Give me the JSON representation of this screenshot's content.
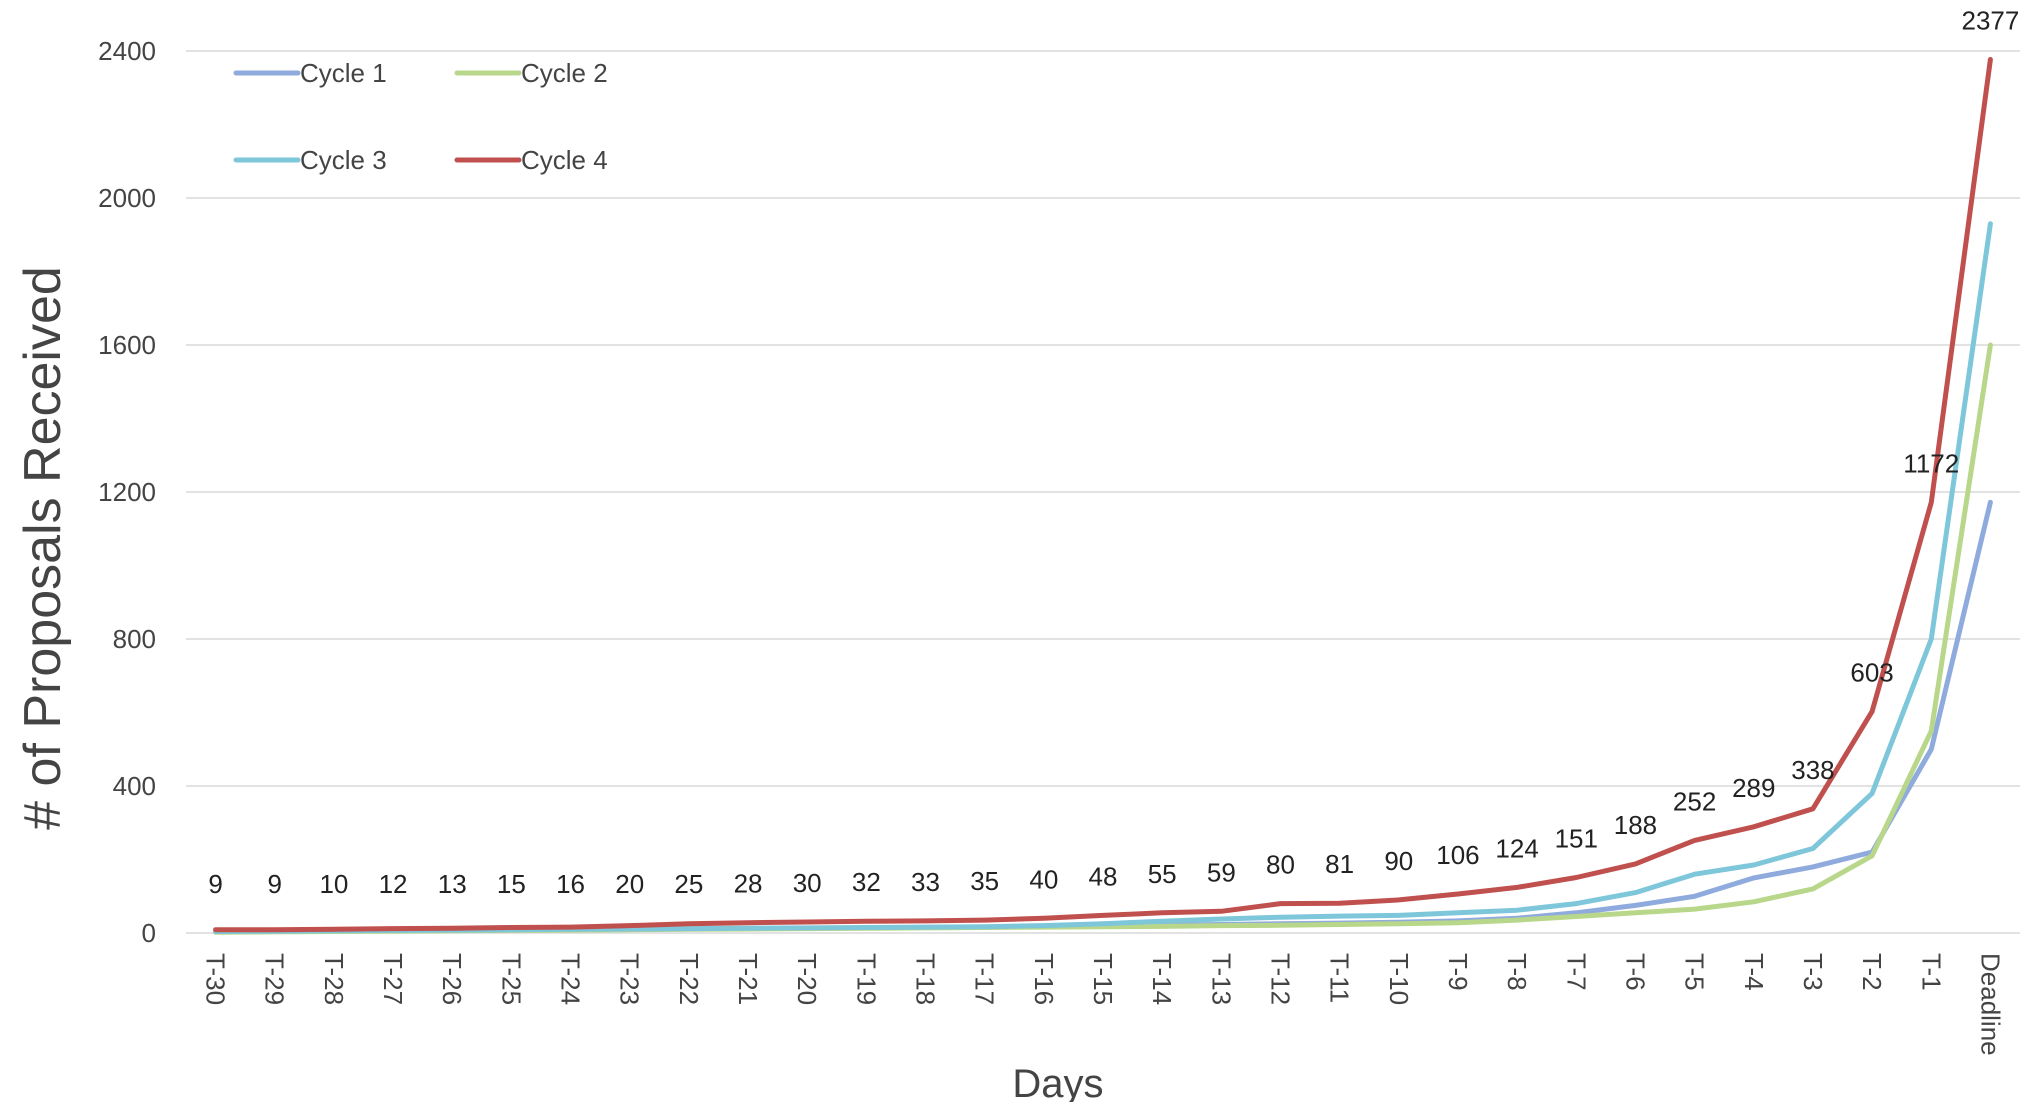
{
  "chart_data": {
    "type": "line",
    "title": "",
    "xlabel": "Days",
    "ylabel": "# of Proposals Received",
    "ylim": [
      0,
      2400
    ],
    "yticks": [
      "0",
      "400",
      "800",
      "1200",
      "1600",
      "2000",
      "2400"
    ],
    "grid": true,
    "legend_position": "top-left",
    "categories": [
      "T-30",
      "T-29",
      "T-28",
      "T-27",
      "T-26",
      "T-25",
      "T-24",
      "T-23",
      "T-22",
      "T-21",
      "T-20",
      "T-19",
      "T-18",
      "T-17",
      "T-16",
      "T-15",
      "T-14",
      "T-13",
      "T-12",
      "T-11",
      "T-10",
      "T-9",
      "T-8",
      "T-7",
      "T-6",
      "T-5",
      "T-4",
      "T-3",
      "T-2",
      "T-1",
      "Deadline"
    ],
    "series": [
      {
        "name": "Cycle 1",
        "color": "#8faadc",
        "values": [
          3,
          4,
          5,
          6,
          7,
          8,
          9,
          10,
          11,
          12,
          13,
          14,
          15,
          16,
          17,
          19,
          21,
          23,
          25,
          27,
          29,
          33,
          40,
          55,
          75,
          100,
          150,
          180,
          220,
          500,
          1172
        ]
      },
      {
        "name": "Cycle 2",
        "color": "#b8d78a",
        "values": [
          2,
          3,
          4,
          5,
          6,
          7,
          8,
          9,
          10,
          11,
          12,
          13,
          14,
          15,
          16,
          17,
          18,
          20,
          21,
          23,
          25,
          28,
          35,
          45,
          55,
          65,
          85,
          120,
          210,
          550,
          1600
        ]
      },
      {
        "name": "Cycle 3",
        "color": "#7ec6d9",
        "values": [
          4,
          5,
          6,
          7,
          8,
          9,
          10,
          11,
          12,
          13,
          14,
          15,
          16,
          17,
          20,
          25,
          32,
          38,
          43,
          46,
          48,
          55,
          62,
          80,
          110,
          160,
          185,
          230,
          380,
          800,
          1930
        ]
      },
      {
        "name": "Cycle 4",
        "color": "#c0504d",
        "values": [
          9,
          9,
          10,
          12,
          13,
          15,
          16,
          20,
          25,
          28,
          30,
          32,
          33,
          35,
          40,
          48,
          55,
          59,
          80,
          81,
          90,
          106,
          124,
          151,
          188,
          252,
          289,
          338,
          603,
          1172,
          2377
        ],
        "data_labels": [
          "9",
          "9",
          "10",
          "12",
          "13",
          "15",
          "16",
          "20",
          "25",
          "28",
          "30",
          "32",
          "33",
          "35",
          "40",
          "48",
          "55",
          "59",
          "80",
          "81",
          "90",
          "106",
          "124",
          "151",
          "188",
          "252",
          "289",
          "338",
          "603",
          "1172",
          "2377"
        ]
      }
    ]
  }
}
